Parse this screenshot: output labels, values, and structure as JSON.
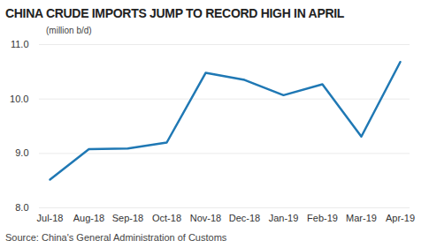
{
  "chart_data": {
    "type": "line",
    "title": "CHINA CRUDE IMPORTS JUMP TO RECORD HIGH IN APRIL",
    "subtitle": "(million b/d)",
    "caption": "Source: China's General Administration of Customs",
    "categories": [
      "Jul-18",
      "Aug-18",
      "Sep-18",
      "Oct-18",
      "Nov-18",
      "Dec-18",
      "Jan-19",
      "Feb-19",
      "Mar-19",
      "Apr-19"
    ],
    "values": [
      8.52,
      9.08,
      9.09,
      9.2,
      10.48,
      10.35,
      10.07,
      10.27,
      9.31,
      10.68
    ],
    "color": "#1f78b4",
    "ylim": [
      8,
      11
    ],
    "yticks": [
      8,
      9,
      10,
      11
    ],
    "grid": true
  }
}
